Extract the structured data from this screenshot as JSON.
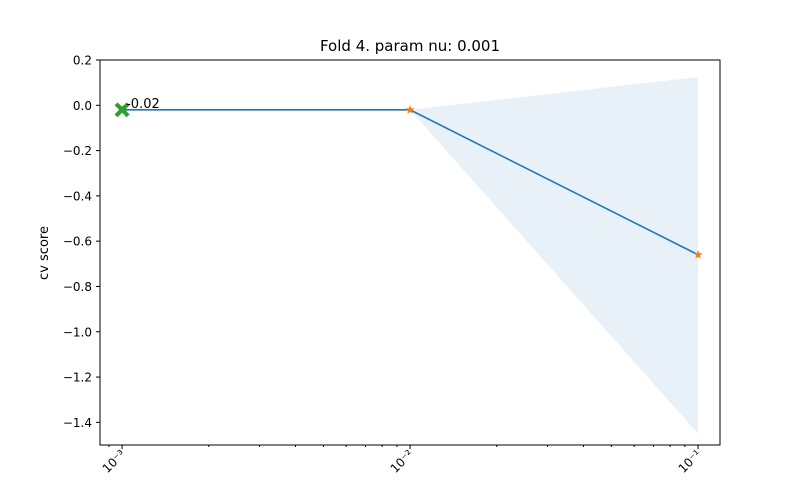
{
  "chart_data": {
    "type": "line",
    "title": "Fold 4. param nu: 0.001",
    "xlabel": "",
    "ylabel": "cv score",
    "xscale": "log",
    "xlim": [
      0.000838,
      0.1192
    ],
    "ylim": [
      -1.5,
      0.2
    ],
    "grid": false,
    "x": [
      0.001,
      0.01,
      0.1
    ],
    "x_tick_labels": [
      "10⁻³",
      "10⁻²",
      "10⁻¹"
    ],
    "y_ticks": [
      0.2,
      0.0,
      -0.2,
      -0.4,
      -0.6,
      -0.8,
      -1.0,
      -1.2,
      -1.4
    ],
    "y_tick_labels": [
      "0.2",
      "0.0",
      "−0.2",
      "−0.4",
      "−0.6",
      "−0.8",
      "−1.0",
      "−1.2",
      "−1.4"
    ],
    "series": [
      {
        "type": "line",
        "values": [
          -0.02,
          -0.02,
          -0.66
        ],
        "color": "#1f77b4",
        "markers": "star",
        "marker_color": "#ff7f0e"
      },
      {
        "type": "band",
        "lower": [
          -0.02,
          -0.02,
          -1.45
        ],
        "upper": [
          -0.02,
          -0.02,
          0.125
        ],
        "color": "#1f77b4",
        "opacity": 0.1
      }
    ],
    "best_point": {
      "x": 0.001,
      "y": -0.02,
      "marker": "x",
      "color": "#2ca02c",
      "label": "-0.02"
    }
  }
}
